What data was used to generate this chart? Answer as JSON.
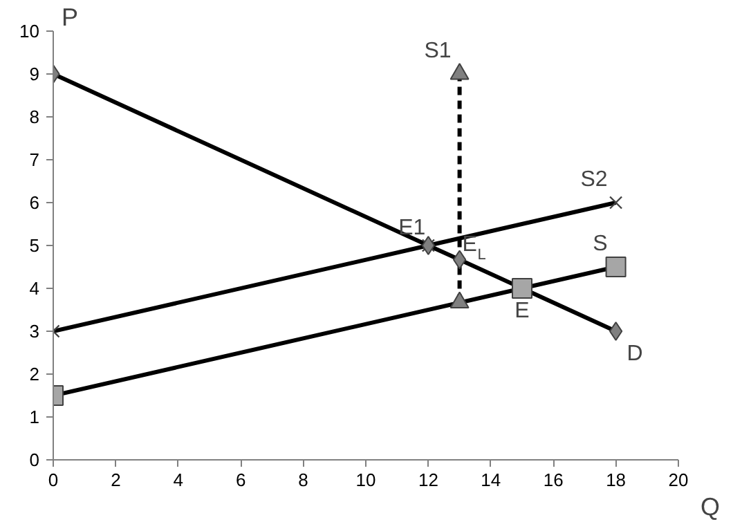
{
  "chart_data": {
    "type": "line",
    "xlabel": "Q",
    "ylabel": "P",
    "xlim": [
      0,
      20
    ],
    "ylim": [
      0,
      10
    ],
    "xticks": [
      0,
      2,
      4,
      6,
      8,
      10,
      12,
      14,
      16,
      18,
      20
    ],
    "yticks": [
      0,
      1,
      2,
      3,
      4,
      5,
      6,
      7,
      8,
      9,
      10
    ],
    "grid": false,
    "series": [
      {
        "name": "D",
        "color": "#808080",
        "marker": "diamond",
        "line_style": "solid",
        "x": [
          0,
          12,
          13,
          18
        ],
        "values": [
          9,
          5,
          4.67,
          3
        ]
      },
      {
        "name": "S2",
        "color": "#404040",
        "marker": "cross",
        "line_style": "solid",
        "x": [
          0,
          12,
          18
        ],
        "values": [
          3,
          5,
          6
        ]
      },
      {
        "name": "S",
        "color": "#a6a6a6",
        "marker": "square",
        "line_style": "solid",
        "x": [
          0,
          15,
          18
        ],
        "values": [
          1.5,
          4,
          4.5
        ]
      },
      {
        "name": "S1",
        "color": "#808080",
        "marker": "triangle",
        "line_style": "dashed",
        "x": [
          13,
          13
        ],
        "values": [
          3.67,
          9
        ]
      }
    ],
    "annotations": [
      {
        "text": "E1",
        "x": 12,
        "y": 5
      },
      {
        "text": "E$_{L}$",
        "x": 13,
        "y": 4.67
      },
      {
        "text": "E",
        "x": 15,
        "y": 4
      }
    ]
  }
}
